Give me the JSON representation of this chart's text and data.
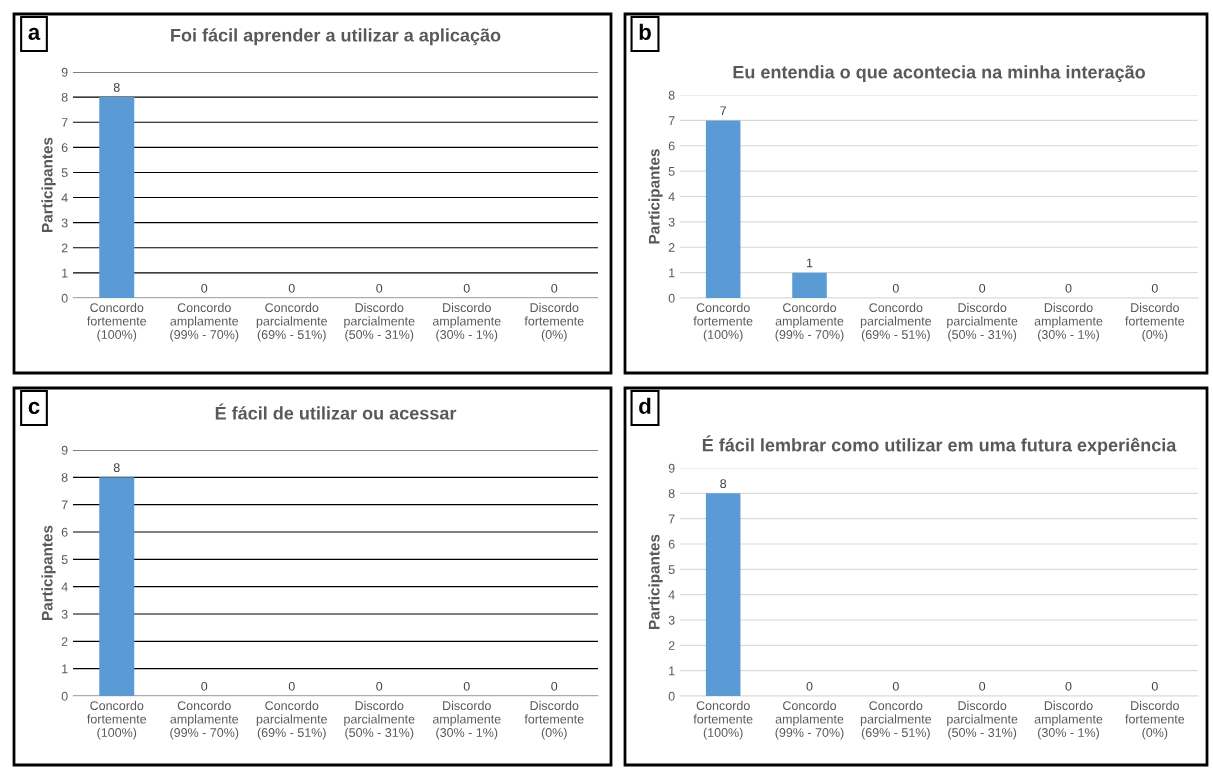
{
  "chart_data": [
    {
      "type": "bar",
      "title": "Foi fácil aprender a utilizar a aplicação",
      "ylabel": "Participantes",
      "annotations": [
        "a"
      ],
      "categories": [
        "Concordo\nfortemente\n(100%)",
        "Concordo\namplamente\n(99% - 70%)",
        "Concordo\nparcialmente\n(69% - 51%)",
        "Discordo\nparcialmente\n(50% - 31%)",
        "Discordo\namplamente\n(30% - 1%)",
        "Discordo\nfortemente\n(0%)"
      ],
      "values": [
        8,
        0,
        0,
        0,
        0,
        0
      ],
      "color": "#5b9bd5",
      "ylim": [
        0,
        9
      ],
      "yticks": [
        0,
        1,
        2,
        3,
        4,
        5,
        6,
        7,
        8,
        9
      ],
      "grid": "y",
      "data_labels": true
    },
    {
      "type": "bar",
      "title": "Eu entendia o que acontecia na minha interação",
      "ylabel": "Participantes",
      "annotations": [
        "b"
      ],
      "categories": [
        "Concordo\nfortemente\n(100%)",
        "Concordo\namplamente\n(99% - 70%)",
        "Concordo\nparcialmente\n(69% - 51%)",
        "Discordo\nparcialmente\n(50% - 31%)",
        "Discordo\namplamente\n(30% - 1%)",
        "Discordo\nfortemente\n(0%)"
      ],
      "values": [
        7,
        1,
        0,
        0,
        0,
        0
      ],
      "color": "#5b9bd5",
      "ylim": [
        0,
        8
      ],
      "yticks": [
        0,
        1,
        2,
        3,
        4,
        5,
        6,
        7,
        8
      ],
      "grid": "y",
      "data_labels": true
    },
    {
      "type": "bar",
      "title": "É fácil de utilizar ou acessar",
      "ylabel": "Participantes",
      "annotations": [
        "c"
      ],
      "categories": [
        "Concordo\nfortemente\n(100%)",
        "Concordo\namplamente\n(99% - 70%)",
        "Concordo\nparcialmente\n(69% - 51%)",
        "Discordo\nparcialmente\n(50% - 31%)",
        "Discordo\namplamente\n(30% - 1%)",
        "Discordo\nfortemente\n(0%)"
      ],
      "values": [
        8,
        0,
        0,
        0,
        0,
        0
      ],
      "color": "#5b9bd5",
      "ylim": [
        0,
        9
      ],
      "yticks": [
        0,
        1,
        2,
        3,
        4,
        5,
        6,
        7,
        8,
        9
      ],
      "grid": "y",
      "data_labels": true
    },
    {
      "type": "bar",
      "title": "É fácil lembrar como utilizar em uma futura experiência",
      "ylabel": "Participantes",
      "annotations": [
        "d"
      ],
      "categories": [
        "Concordo\nfortemente\n(100%)",
        "Concordo\namplamente\n(99% - 70%)",
        "Concordo\nparcialmente\n(69% - 51%)",
        "Discordo\nparcialmente\n(50% - 31%)",
        "Discordo\namplamente\n(30% - 1%)",
        "Discordo\nfortemente\n(0%)"
      ],
      "values": [
        8,
        0,
        0,
        0,
        0,
        0
      ],
      "color": "#5b9bd5",
      "ylim": [
        0,
        9
      ],
      "yticks": [
        0,
        1,
        2,
        3,
        4,
        5,
        6,
        7,
        8,
        9
      ],
      "grid": "y",
      "data_labels": true
    }
  ]
}
